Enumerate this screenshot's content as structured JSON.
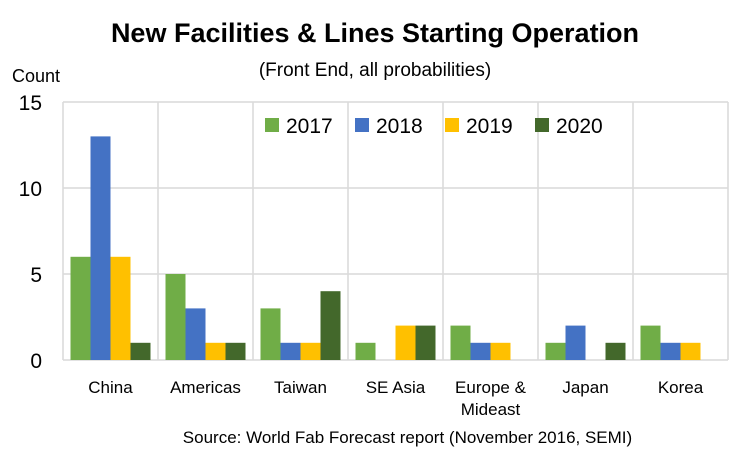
{
  "chart_data": {
    "type": "bar",
    "title": "New Facilities & Lines Starting Operation",
    "subtitle": "(Front End, all probabilities)",
    "ylabel": "Count",
    "xlabel": "",
    "ylim": [
      0,
      15
    ],
    "yticks": [
      0,
      5,
      10,
      15
    ],
    "grid": true,
    "legend_placement": "top-right",
    "categories": [
      "China",
      "Americas",
      "Taiwan",
      "SE Asia",
      "Europe & Mideast",
      "Japan",
      "Korea"
    ],
    "category_lines": [
      [
        "China"
      ],
      [
        "Americas"
      ],
      [
        "Taiwan"
      ],
      [
        "SE Asia"
      ],
      [
        "Europe &",
        "Mideast"
      ],
      [
        "Japan"
      ],
      [
        "Korea"
      ]
    ],
    "series": [
      {
        "name": "2017",
        "color": "#70AD47",
        "values": [
          6,
          5,
          3,
          1,
          2,
          1,
          2
        ]
      },
      {
        "name": "2018",
        "color": "#4472C4",
        "values": [
          13,
          3,
          1,
          0,
          1,
          2,
          1
        ]
      },
      {
        "name": "2019",
        "color": "#FFC000",
        "values": [
          6,
          1,
          1,
          2,
          1,
          0,
          1
        ]
      },
      {
        "name": "2020",
        "color": "#43682B",
        "values": [
          1,
          1,
          4,
          2,
          0,
          1,
          0
        ]
      }
    ],
    "source": "Source: World Fab Forecast report (November 2016, SEMI)"
  }
}
